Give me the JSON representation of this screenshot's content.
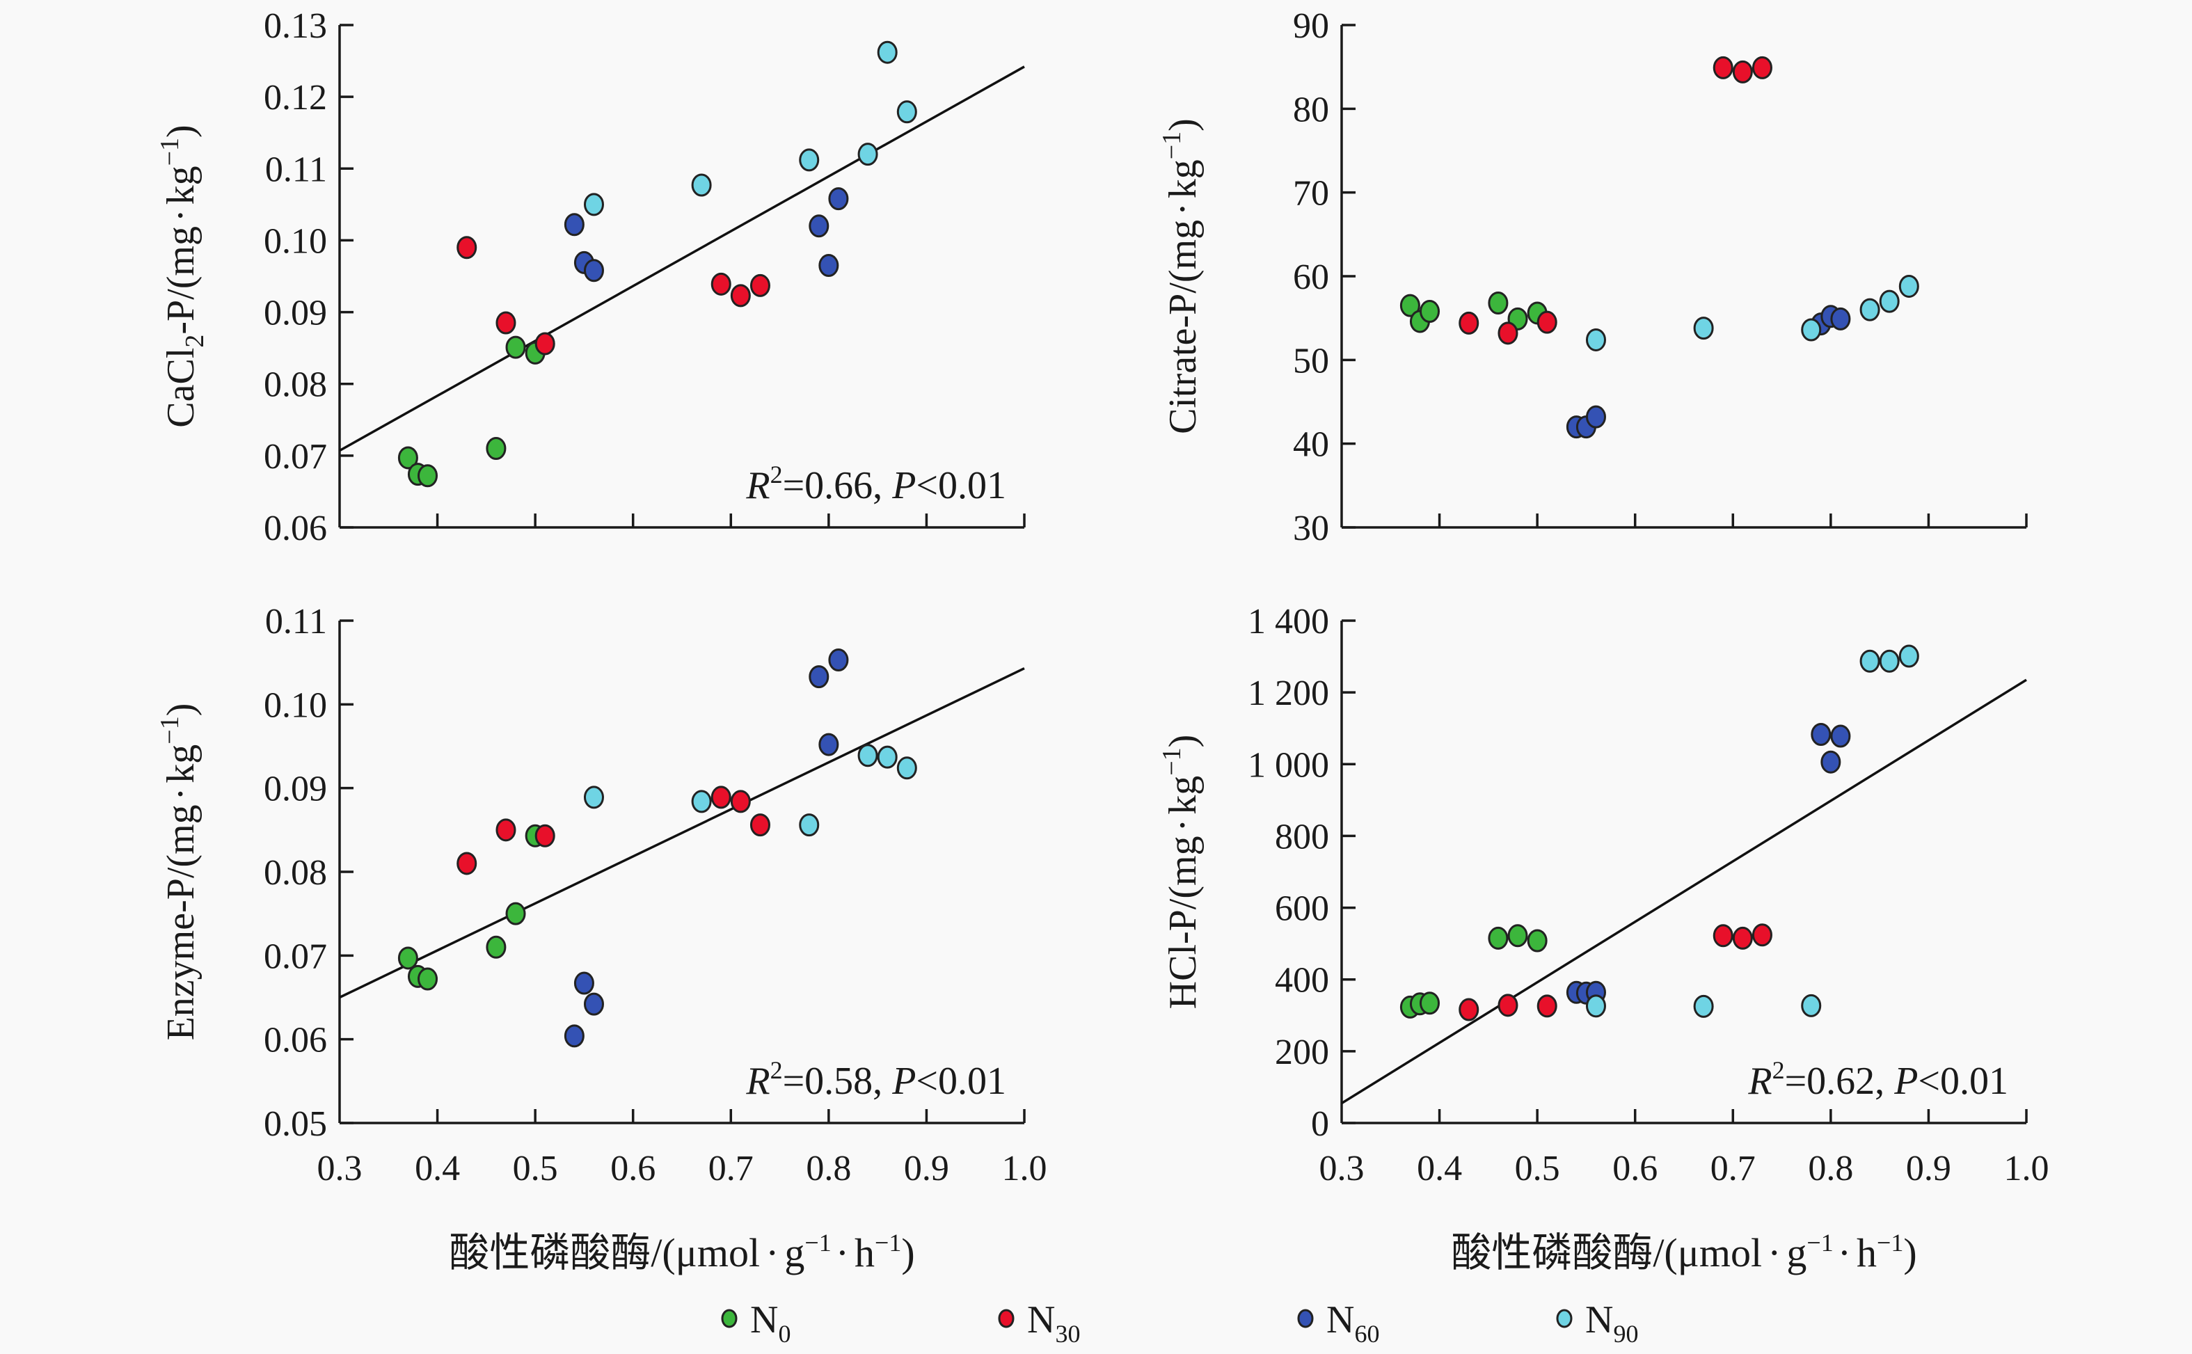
{
  "figure": {
    "x_axis_title": {
      "main": "酸性磷酸酶/(μmol",
      "dot1": "·",
      "g": "g",
      "g_sup": "−1",
      "dot2": "·",
      "h": "h",
      "h_sup": "−1",
      "close": ")"
    },
    "legend": [
      {
        "key": "N0",
        "label": "N",
        "sub": "0",
        "color": "#3cb63c"
      },
      {
        "key": "N30",
        "label": "N",
        "sub": "30",
        "color": "#e8102a"
      },
      {
        "key": "N60",
        "label": "N",
        "sub": "60",
        "color": "#3452b4"
      },
      {
        "key": "N90",
        "label": "N",
        "sub": "90",
        "color": "#6fd4e4"
      }
    ]
  },
  "chart_data": [
    {
      "type": "scatter",
      "id": "cacl2",
      "position": "top-left",
      "ylabel": {
        "prefix": "CaCl",
        "sub": "2",
        "suffix": "-P/(mg",
        "dot": "·",
        "unit": "kg",
        "sup": "−1",
        "close": ")"
      },
      "xlabel": "",
      "xlim": [
        0.3,
        1.0
      ],
      "ylim": [
        0.06,
        0.13
      ],
      "xticks": [
        0.3,
        0.4,
        0.5,
        0.6,
        0.7,
        0.8,
        0.9,
        1.0
      ],
      "xtick_labels_shown": false,
      "yticks": [
        0.06,
        0.07,
        0.08,
        0.09,
        0.1,
        0.11,
        0.12,
        0.13
      ],
      "ytick_labels": [
        "0.06",
        "0.07",
        "0.08",
        "0.09",
        "0.10",
        "0.11",
        "0.12",
        "0.13"
      ],
      "annotation": {
        "r": "R",
        "sup": "2",
        "text": "=0.66, ",
        "p": "P",
        "rest": "<0.01"
      },
      "fit_line": {
        "x": [
          0.3,
          1.0
        ],
        "y": [
          0.0707,
          0.1242
        ]
      },
      "series": [
        {
          "name": "N0",
          "x": [
            0.37,
            0.38,
            0.39,
            0.46,
            0.48,
            0.5
          ],
          "y": [
            0.0697,
            0.0674,
            0.0672,
            0.071,
            0.0851,
            0.0843
          ]
        },
        {
          "name": "N30",
          "x": [
            0.43,
            0.47,
            0.51,
            0.69,
            0.71,
            0.73
          ],
          "y": [
            0.099,
            0.0885,
            0.0856,
            0.0939,
            0.0923,
            0.0937
          ]
        },
        {
          "name": "N60",
          "x": [
            0.54,
            0.55,
            0.56,
            0.79,
            0.8,
            0.81
          ],
          "y": [
            0.1022,
            0.0969,
            0.0958,
            0.102,
            0.0965,
            0.1058
          ]
        },
        {
          "name": "N90",
          "x": [
            0.56,
            0.67,
            0.78,
            0.84,
            0.86,
            0.88
          ],
          "y": [
            0.105,
            0.1077,
            0.1112,
            0.112,
            0.1262,
            0.1179
          ]
        }
      ]
    },
    {
      "type": "scatter",
      "id": "citrate",
      "position": "top-right",
      "ylabel": {
        "prefix": "Citrate",
        "sub": "",
        "suffix": "-P/(mg",
        "dot": "·",
        "unit": "kg",
        "sup": "−1",
        "close": ")"
      },
      "xlabel": "",
      "xlim": [
        0.3,
        1.0
      ],
      "ylim": [
        30,
        90
      ],
      "xticks": [
        0.3,
        0.4,
        0.5,
        0.6,
        0.7,
        0.8,
        0.9,
        1.0
      ],
      "xtick_labels_shown": false,
      "yticks": [
        30,
        40,
        50,
        60,
        70,
        80,
        90
      ],
      "ytick_labels": [
        "30",
        "40",
        "50",
        "60",
        "70",
        "80",
        "90"
      ],
      "annotation": null,
      "fit_line": null,
      "series": [
        {
          "name": "N0",
          "x": [
            0.37,
            0.38,
            0.39,
            0.46,
            0.48,
            0.5
          ],
          "y": [
            56.5,
            54.6,
            55.8,
            56.8,
            54.9,
            55.6
          ]
        },
        {
          "name": "N30",
          "x": [
            0.43,
            0.47,
            0.51,
            0.69,
            0.71,
            0.73
          ],
          "y": [
            54.4,
            53.2,
            54.5,
            84.9,
            84.4,
            84.9
          ]
        },
        {
          "name": "N60",
          "x": [
            0.54,
            0.55,
            0.56,
            0.79,
            0.8,
            0.81
          ],
          "y": [
            42.0,
            42.0,
            43.2,
            54.3,
            55.2,
            54.9
          ]
        },
        {
          "name": "N90",
          "x": [
            0.56,
            0.67,
            0.78,
            0.84,
            0.86,
            0.88
          ],
          "y": [
            52.4,
            53.8,
            53.6,
            56.0,
            57.0,
            58.8
          ]
        }
      ]
    },
    {
      "type": "scatter",
      "id": "enzyme",
      "position": "bottom-left",
      "ylabel": {
        "prefix": "Enzyme",
        "sub": "",
        "suffix": "-P/(mg",
        "dot": "·",
        "unit": "kg",
        "sup": "−1",
        "close": ")"
      },
      "xlabel": "酸性磷酸酶/(μmol·g−1·h−1)",
      "xlim": [
        0.3,
        1.0
      ],
      "ylim": [
        0.05,
        0.11
      ],
      "xticks": [
        0.3,
        0.4,
        0.5,
        0.6,
        0.7,
        0.8,
        0.9,
        1.0
      ],
      "xtick_labels_shown": true,
      "xtick_labels": [
        "0.3",
        "0.4",
        "0.5",
        "0.6",
        "0.7",
        "0.8",
        "0.9",
        "1.0"
      ],
      "yticks": [
        0.05,
        0.06,
        0.07,
        0.08,
        0.09,
        0.1,
        0.11
      ],
      "ytick_labels": [
        "0.05",
        "0.06",
        "0.07",
        "0.08",
        "0.09",
        "0.10",
        "0.11"
      ],
      "annotation": {
        "r": "R",
        "sup": "2",
        "text": "=0.58, ",
        "p": "P",
        "rest": "<0.01"
      },
      "fit_line": {
        "x": [
          0.3,
          1.0
        ],
        "y": [
          0.065,
          0.1043
        ]
      },
      "series": [
        {
          "name": "N0",
          "x": [
            0.37,
            0.38,
            0.39,
            0.46,
            0.48,
            0.5
          ],
          "y": [
            0.0697,
            0.0675,
            0.0672,
            0.071,
            0.075,
            0.0843
          ]
        },
        {
          "name": "N30",
          "x": [
            0.43,
            0.47,
            0.51,
            0.69,
            0.71,
            0.73
          ],
          "y": [
            0.081,
            0.085,
            0.0843,
            0.0889,
            0.0884,
            0.0856
          ]
        },
        {
          "name": "N60",
          "x": [
            0.54,
            0.55,
            0.56,
            0.79,
            0.8,
            0.81
          ],
          "y": [
            0.0604,
            0.0667,
            0.0642,
            0.1033,
            0.0952,
            0.1053
          ]
        },
        {
          "name": "N90",
          "x": [
            0.56,
            0.67,
            0.78,
            0.84,
            0.86,
            0.88
          ],
          "y": [
            0.0889,
            0.0884,
            0.0856,
            0.0939,
            0.0937,
            0.0924
          ]
        }
      ]
    },
    {
      "type": "scatter",
      "id": "hcl",
      "position": "bottom-right",
      "ylabel": {
        "prefix": "HCl",
        "sub": "",
        "suffix": "-P/(mg",
        "dot": "·",
        "unit": "kg",
        "sup": "−1",
        "close": ")"
      },
      "xlabel": "酸性磷酸酶/(μmol·g−1·h−1)",
      "xlim": [
        0.3,
        1.0
      ],
      "ylim": [
        0,
        1400
      ],
      "xticks": [
        0.3,
        0.4,
        0.5,
        0.6,
        0.7,
        0.8,
        0.9,
        1.0
      ],
      "xtick_labels_shown": true,
      "xtick_labels": [
        "0.3",
        "0.4",
        "0.5",
        "0.6",
        "0.7",
        "0.8",
        "0.9",
        "1.0"
      ],
      "yticks": [
        0,
        200,
        400,
        600,
        800,
        1000,
        1200,
        1400
      ],
      "ytick_labels": [
        "0",
        "200",
        "400",
        "600",
        "800",
        "1 000",
        "1 200",
        "1 400"
      ],
      "annotation": {
        "r": "R",
        "sup": "2",
        "text": "=0.62, ",
        "p": "P",
        "rest": "<0.01"
      },
      "fit_line": {
        "x": [
          0.3,
          1.0
        ],
        "y": [
          55,
          1235
        ]
      },
      "series": [
        {
          "name": "N0",
          "x": [
            0.37,
            0.38,
            0.39,
            0.46,
            0.48,
            0.5
          ],
          "y": [
            323,
            332,
            334,
            515,
            522,
            508
          ]
        },
        {
          "name": "N30",
          "x": [
            0.43,
            0.47,
            0.51,
            0.69,
            0.71,
            0.73
          ],
          "y": [
            316,
            328,
            326,
            522,
            515,
            524
          ]
        },
        {
          "name": "N60",
          "x": [
            0.54,
            0.55,
            0.56,
            0.79,
            0.8,
            0.81
          ],
          "y": [
            364,
            362,
            364,
            1083,
            1006,
            1078
          ]
        },
        {
          "name": "N90",
          "x": [
            0.56,
            0.67,
            0.78,
            0.84,
            0.86,
            0.88
          ],
          "y": [
            326,
            325,
            327,
            1287,
            1287,
            1301
          ]
        }
      ]
    }
  ]
}
